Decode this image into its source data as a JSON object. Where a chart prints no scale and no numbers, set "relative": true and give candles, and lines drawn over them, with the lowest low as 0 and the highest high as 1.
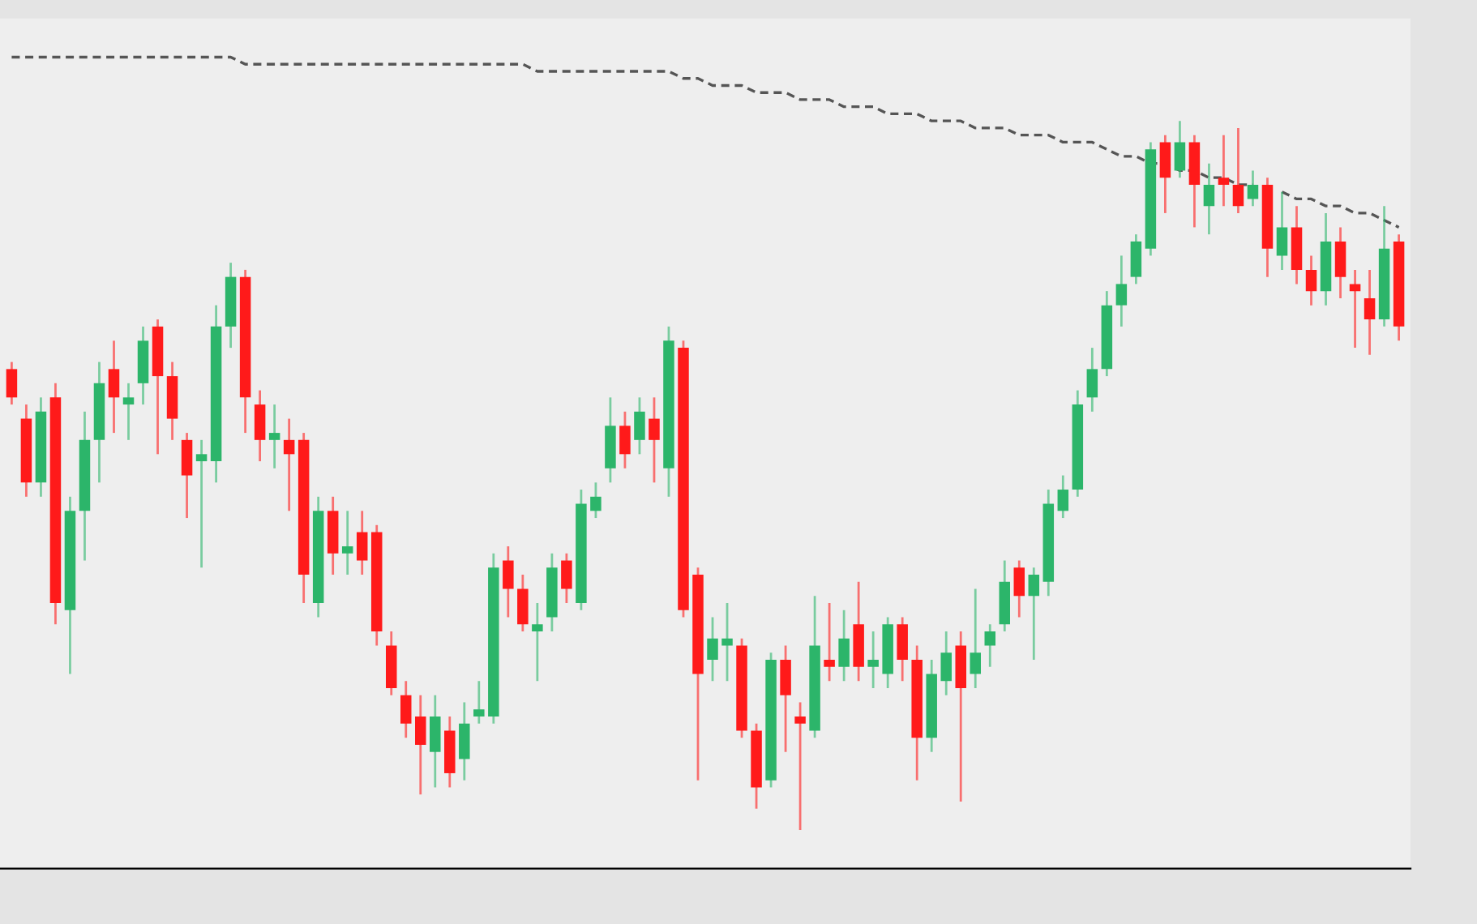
{
  "chart_data": {
    "type": "candlestick",
    "relative": true,
    "categories": [
      null,
      null,
      null,
      null,
      null,
      null,
      null,
      null,
      null,
      null,
      null,
      null,
      null,
      null,
      null,
      null,
      null,
      null,
      null,
      null,
      null,
      null,
      null,
      null,
      null,
      null,
      null,
      null,
      null,
      null,
      null,
      null,
      null,
      null,
      null,
      null,
      null,
      null,
      null,
      null,
      null,
      null,
      null,
      null,
      null,
      null,
      null,
      null,
      null,
      null,
      null,
      null,
      null,
      null,
      null,
      null,
      null,
      null,
      null,
      null,
      null,
      null,
      null,
      null,
      null,
      null,
      null,
      null,
      null,
      null,
      null,
      null,
      null,
      null,
      null,
      null,
      null,
      null,
      null,
      null,
      null,
      null,
      null,
      null,
      null,
      null,
      null,
      null,
      null,
      null,
      null,
      null,
      null,
      null,
      null,
      null
    ],
    "ohlc": [
      [
        0.65,
        0.66,
        0.6,
        0.61
      ],
      [
        0.58,
        0.6,
        0.47,
        0.49
      ],
      [
        0.49,
        0.61,
        0.47,
        0.59
      ],
      [
        0.61,
        0.63,
        0.29,
        0.32
      ],
      [
        0.31,
        0.47,
        0.22,
        0.45
      ],
      [
        0.45,
        0.59,
        0.38,
        0.55
      ],
      [
        0.55,
        0.66,
        0.49,
        0.63
      ],
      [
        0.65,
        0.69,
        0.56,
        0.61
      ],
      [
        0.6,
        0.63,
        0.55,
        0.61
      ],
      [
        0.63,
        0.71,
        0.6,
        0.69
      ],
      [
        0.71,
        0.72,
        0.53,
        0.64
      ],
      [
        0.64,
        0.66,
        0.55,
        0.58
      ],
      [
        0.55,
        0.56,
        0.44,
        0.5
      ],
      [
        0.52,
        0.55,
        0.37,
        0.53
      ],
      [
        0.52,
        0.74,
        0.49,
        0.71
      ],
      [
        0.71,
        0.8,
        0.68,
        0.78
      ],
      [
        0.78,
        0.79,
        0.56,
        0.61
      ],
      [
        0.6,
        0.62,
        0.52,
        0.55
      ],
      [
        0.55,
        0.6,
        0.51,
        0.56
      ],
      [
        0.55,
        0.58,
        0.45,
        0.53
      ],
      [
        0.55,
        0.56,
        0.32,
        0.36
      ],
      [
        0.32,
        0.47,
        0.3,
        0.45
      ],
      [
        0.45,
        0.47,
        0.36,
        0.39
      ],
      [
        0.39,
        0.45,
        0.36,
        0.4
      ],
      [
        0.42,
        0.45,
        0.36,
        0.38
      ],
      [
        0.42,
        0.43,
        0.26,
        0.28
      ],
      [
        0.26,
        0.28,
        0.19,
        0.2
      ],
      [
        0.19,
        0.21,
        0.13,
        0.15
      ],
      [
        0.16,
        0.19,
        0.05,
        0.12
      ],
      [
        0.11,
        0.19,
        0.06,
        0.16
      ],
      [
        0.14,
        0.16,
        0.06,
        0.08
      ],
      [
        0.1,
        0.18,
        0.07,
        0.15
      ],
      [
        0.16,
        0.21,
        0.15,
        0.17
      ],
      [
        0.16,
        0.39,
        0.15,
        0.37
      ],
      [
        0.38,
        0.4,
        0.3,
        0.34
      ],
      [
        0.34,
        0.36,
        0.28,
        0.29
      ],
      [
        0.28,
        0.32,
        0.21,
        0.29
      ],
      [
        0.3,
        0.39,
        0.28,
        0.37
      ],
      [
        0.38,
        0.39,
        0.32,
        0.34
      ],
      [
        0.32,
        0.48,
        0.31,
        0.46
      ],
      [
        0.45,
        0.49,
        0.44,
        0.47
      ],
      [
        0.51,
        0.61,
        0.49,
        0.57
      ],
      [
        0.57,
        0.59,
        0.51,
        0.53
      ],
      [
        0.55,
        0.61,
        0.53,
        0.59
      ],
      [
        0.58,
        0.61,
        0.49,
        0.55
      ],
      [
        0.51,
        0.71,
        0.47,
        0.69
      ],
      [
        0.68,
        0.69,
        0.3,
        0.31
      ],
      [
        0.36,
        0.37,
        0.07,
        0.22
      ],
      [
        0.24,
        0.3,
        0.21,
        0.27
      ],
      [
        0.26,
        0.32,
        0.21,
        0.27
      ],
      [
        0.26,
        0.27,
        0.13,
        0.14
      ],
      [
        0.14,
        0.15,
        0.03,
        0.06
      ],
      [
        0.07,
        0.25,
        0.06,
        0.24
      ],
      [
        0.24,
        0.26,
        0.11,
        0.19
      ],
      [
        0.16,
        0.18,
        0.0,
        0.15
      ],
      [
        0.14,
        0.33,
        0.13,
        0.26
      ],
      [
        0.24,
        0.32,
        0.21,
        0.23
      ],
      [
        0.23,
        0.31,
        0.21,
        0.27
      ],
      [
        0.29,
        0.35,
        0.21,
        0.23
      ],
      [
        0.23,
        0.28,
        0.2,
        0.24
      ],
      [
        0.22,
        0.3,
        0.2,
        0.29
      ],
      [
        0.29,
        0.3,
        0.21,
        0.24
      ],
      [
        0.24,
        0.26,
        0.07,
        0.13
      ],
      [
        0.13,
        0.24,
        0.11,
        0.22
      ],
      [
        0.21,
        0.28,
        0.19,
        0.25
      ],
      [
        0.26,
        0.28,
        0.04,
        0.2
      ],
      [
        0.22,
        0.34,
        0.2,
        0.25
      ],
      [
        0.26,
        0.29,
        0.23,
        0.28
      ],
      [
        0.29,
        0.38,
        0.28,
        0.35
      ],
      [
        0.37,
        0.38,
        0.3,
        0.33
      ],
      [
        0.33,
        0.37,
        0.24,
        0.36
      ],
      [
        0.35,
        0.48,
        0.33,
        0.46
      ],
      [
        0.45,
        0.5,
        0.44,
        0.48
      ],
      [
        0.48,
        0.62,
        0.47,
        0.6
      ],
      [
        0.61,
        0.68,
        0.59,
        0.65
      ],
      [
        0.65,
        0.76,
        0.64,
        0.74
      ],
      [
        0.74,
        0.81,
        0.71,
        0.77
      ],
      [
        0.78,
        0.84,
        0.77,
        0.83
      ],
      [
        0.82,
        0.97,
        0.81,
        0.96
      ],
      [
        0.97,
        0.98,
        0.87,
        0.92
      ],
      [
        0.93,
        1.0,
        0.92,
        0.97
      ],
      [
        0.97,
        0.98,
        0.85,
        0.91
      ],
      [
        0.88,
        0.94,
        0.84,
        0.91
      ],
      [
        0.92,
        0.98,
        0.88,
        0.91
      ],
      [
        0.91,
        0.99,
        0.87,
        0.88
      ],
      [
        0.89,
        0.93,
        0.88,
        0.91
      ],
      [
        0.91,
        0.92,
        0.78,
        0.82
      ],
      [
        0.81,
        0.9,
        0.79,
        0.85
      ],
      [
        0.85,
        0.88,
        0.77,
        0.79
      ],
      [
        0.79,
        0.81,
        0.74,
        0.76
      ],
      [
        0.76,
        0.87,
        0.74,
        0.83
      ],
      [
        0.83,
        0.85,
        0.75,
        0.78
      ],
      [
        0.77,
        0.79,
        0.68,
        0.76
      ],
      [
        0.75,
        0.79,
        0.67,
        0.72
      ],
      [
        0.72,
        0.88,
        0.71,
        0.82
      ],
      [
        0.83,
        0.84,
        0.69,
        0.71
      ]
    ],
    "series": [
      {
        "type": "line",
        "color": "#555555",
        "line_style": "dashed",
        "values": [
          1.09,
          1.09,
          1.09,
          1.09,
          1.09,
          1.09,
          1.09,
          1.09,
          1.09,
          1.09,
          1.09,
          1.09,
          1.09,
          1.09,
          1.09,
          1.09,
          1.08,
          1.08,
          1.08,
          1.08,
          1.08,
          1.08,
          1.08,
          1.08,
          1.08,
          1.08,
          1.08,
          1.08,
          1.08,
          1.08,
          1.08,
          1.08,
          1.08,
          1.08,
          1.08,
          1.08,
          1.07,
          1.07,
          1.07,
          1.07,
          1.07,
          1.07,
          1.07,
          1.07,
          1.07,
          1.07,
          1.06,
          1.06,
          1.05,
          1.05,
          1.05,
          1.04,
          1.04,
          1.04,
          1.03,
          1.03,
          1.03,
          1.02,
          1.02,
          1.02,
          1.01,
          1.01,
          1.01,
          1.0,
          1.0,
          1.0,
          0.99,
          0.99,
          0.99,
          0.98,
          0.98,
          0.98,
          0.97,
          0.97,
          0.97,
          0.96,
          0.95,
          0.95,
          0.94,
          0.94,
          0.93,
          0.93,
          0.92,
          0.92,
          0.91,
          0.91,
          null,
          0.9,
          0.89,
          0.89,
          0.88,
          0.88,
          0.87,
          0.87,
          0.86,
          0.85
        ]
      }
    ]
  }
}
